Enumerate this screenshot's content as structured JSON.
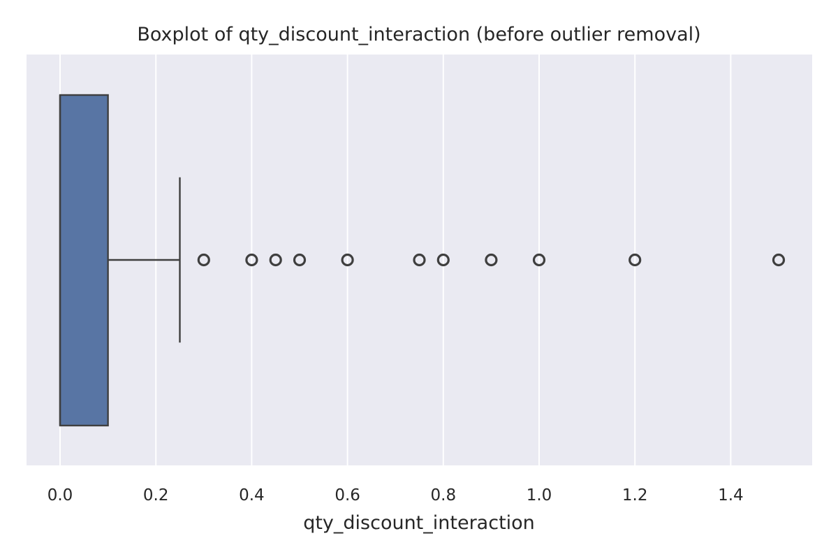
{
  "chart_data": {
    "type": "boxplot",
    "orientation": "horizontal",
    "title": "Boxplot of qty_discount_interaction (before outlier removal)",
    "xlabel": "qty_discount_interaction",
    "ylabel": "",
    "xlim": [
      -0.07,
      1.57
    ],
    "xticks": [
      0.0,
      0.2,
      0.4,
      0.6,
      0.8,
      1.0,
      1.2,
      1.4
    ],
    "xtick_labels": [
      "0.0",
      "0.2",
      "0.4",
      "0.6",
      "0.8",
      "1.0",
      "1.2",
      "1.4"
    ],
    "grid": true,
    "box": {
      "whisker_low": 0.0,
      "q1": 0.0,
      "median": 0.0,
      "q3": 0.1,
      "whisker_high": 0.25
    },
    "outliers": [
      0.3,
      0.4,
      0.45,
      0.5,
      0.6,
      0.75,
      0.8,
      0.9,
      1.0,
      1.2,
      1.5
    ],
    "colors": {
      "plot_background": "#eaeaf2",
      "grid": "#ffffff",
      "box_fill": "#5875a4",
      "line": "#3f3f3f"
    }
  }
}
